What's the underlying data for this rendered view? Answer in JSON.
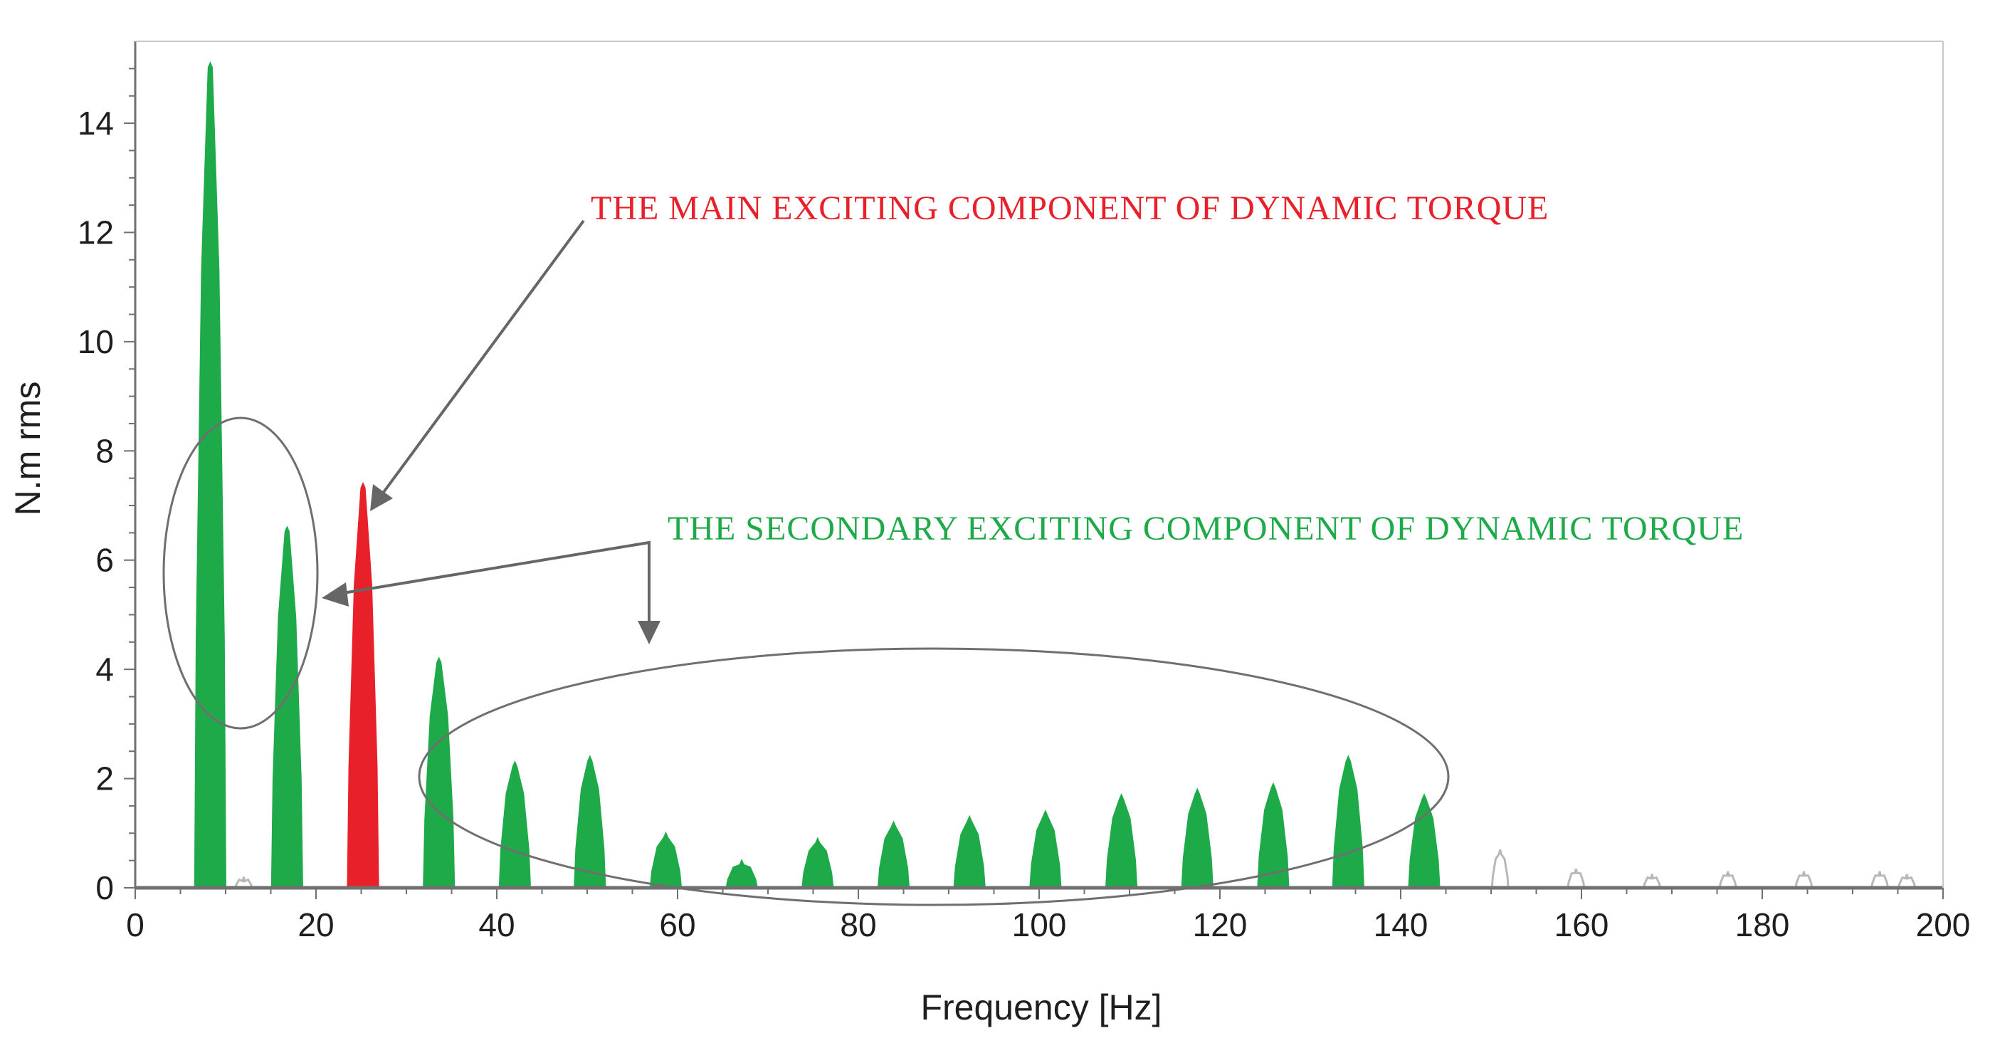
{
  "chart_data": {
    "type": "bar",
    "xlabel": "Frequency [Hz]",
    "ylabel": "N.m rms",
    "xlim": [
      0,
      200
    ],
    "ylim": [
      0,
      15.5
    ],
    "x_ticks": [
      "0",
      "20",
      "40",
      "60",
      "80",
      "100",
      "120",
      "140",
      "160",
      "180",
      "200"
    ],
    "y_ticks": [
      "0",
      "2",
      "4",
      "6",
      "8",
      "10",
      "12",
      "14"
    ],
    "grid": false,
    "colors": {
      "secondary": "#1faa4a",
      "main": "#e8202a",
      "background": "#b8b8b8",
      "axis": "#707070",
      "annotation_arrow": "#666666"
    },
    "series": [
      {
        "role": "secondary",
        "color": "#1faa4a",
        "x": [
          8.3,
          16.8,
          33.6,
          42.0,
          50.3,
          58.7,
          67.1,
          75.5,
          83.9,
          92.3,
          100.7,
          109.1,
          117.5,
          125.9,
          134.2,
          142.6
        ],
        "values": [
          15.1,
          6.6,
          4.2,
          2.3,
          2.4,
          1.0,
          0.5,
          0.9,
          1.2,
          1.3,
          1.4,
          1.7,
          1.8,
          1.9,
          2.4,
          1.7
        ]
      },
      {
        "role": "main",
        "color": "#e8202a",
        "x": [
          25.2
        ],
        "values": [
          7.4
        ]
      },
      {
        "role": "background",
        "color": "#b8b8b8",
        "x": [
          12.0,
          151.0,
          159.4,
          167.8,
          176.2,
          184.6,
          193.0,
          196.0
        ],
        "values": [
          0.2,
          0.7,
          0.35,
          0.25,
          0.3,
          0.3,
          0.3,
          0.25
        ]
      }
    ],
    "annotations": [
      {
        "text": "THE MAIN EXCITING COMPONENT OF DYNAMIC TORQUE",
        "color": "#e8202a"
      },
      {
        "text": "THE SECONDARY EXCITING COMPONENT OF DYNAMIC TORQUE",
        "color": "#1faa4a"
      }
    ]
  }
}
